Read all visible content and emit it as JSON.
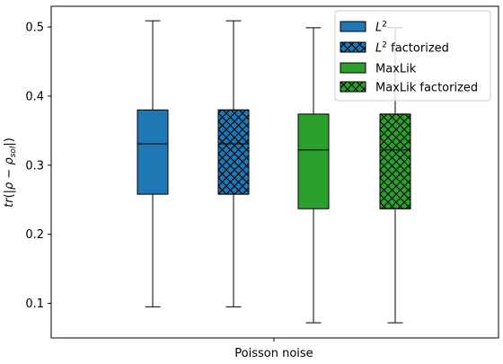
{
  "chart_data": {
    "type": "box",
    "xlabel": "Poisson noise",
    "ylabel": "tr(|ρ − ρ_sol|)",
    "ylim": [
      0.05,
      0.53
    ],
    "yticks": [
      0.1,
      0.2,
      0.3,
      0.4,
      0.5
    ],
    "ytick_labels": [
      "0.1",
      "0.2",
      "0.3",
      "0.4",
      "0.5"
    ],
    "grid": false,
    "legend_position": "top-right",
    "series": [
      {
        "name": "L²",
        "label_base": "L",
        "label_sup": "2",
        "label_suffix": "",
        "color": "#1f77b4",
        "hatch": false,
        "whisker_low": 0.095,
        "q1": 0.258,
        "median": 0.331,
        "q3": 0.38,
        "whisker_high": 0.509
      },
      {
        "name": "L² factorized",
        "label_base": "L",
        "label_sup": "2",
        "label_suffix": " factorized",
        "color": "#1f77b4",
        "hatch": true,
        "whisker_low": 0.095,
        "q1": 0.258,
        "median": 0.331,
        "q3": 0.38,
        "whisker_high": 0.509
      },
      {
        "name": "MaxLik",
        "label_base": "MaxLik",
        "label_sup": "",
        "label_suffix": "",
        "color": "#2ca02c",
        "hatch": false,
        "whisker_low": 0.072,
        "q1": 0.237,
        "median": 0.322,
        "q3": 0.374,
        "whisker_high": 0.499
      },
      {
        "name": "MaxLik factorized",
        "label_base": "MaxLik factorized",
        "label_sup": "",
        "label_suffix": "",
        "color": "#2ca02c",
        "hatch": true,
        "whisker_low": 0.072,
        "q1": 0.237,
        "median": 0.322,
        "q3": 0.374,
        "whisker_high": 0.499
      }
    ]
  }
}
